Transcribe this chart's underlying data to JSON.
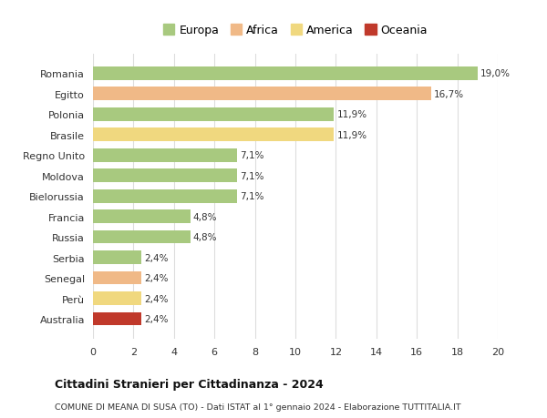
{
  "categories": [
    "Romania",
    "Egitto",
    "Polonia",
    "Brasile",
    "Regno Unito",
    "Moldova",
    "Bielorussia",
    "Francia",
    "Russia",
    "Serbia",
    "Senegal",
    "Perù",
    "Australia"
  ],
  "values": [
    19.0,
    16.7,
    11.9,
    11.9,
    7.1,
    7.1,
    7.1,
    4.8,
    4.8,
    2.4,
    2.4,
    2.4,
    2.4
  ],
  "labels": [
    "19,0%",
    "16,7%",
    "11,9%",
    "11,9%",
    "7,1%",
    "7,1%",
    "7,1%",
    "4,8%",
    "4,8%",
    "2,4%",
    "2,4%",
    "2,4%",
    "2,4%"
  ],
  "colors": [
    "#a8c97f",
    "#f0b987",
    "#a8c97f",
    "#f0d87f",
    "#a8c97f",
    "#a8c97f",
    "#a8c97f",
    "#a8c97f",
    "#a8c97f",
    "#a8c97f",
    "#f0b987",
    "#f0d87f",
    "#c0392b"
  ],
  "legend": [
    {
      "label": "Europa",
      "color": "#a8c97f"
    },
    {
      "label": "Africa",
      "color": "#f0b987"
    },
    {
      "label": "America",
      "color": "#f0d87f"
    },
    {
      "label": "Oceania",
      "color": "#c0392b"
    }
  ],
  "title": "Cittadini Stranieri per Cittadinanza - 2024",
  "subtitle": "COMUNE DI MEANA DI SUSA (TO) - Dati ISTAT al 1° gennaio 2024 - Elaborazione TUTTITALIA.IT",
  "xlim": [
    0,
    20
  ],
  "xticks": [
    0,
    2,
    4,
    6,
    8,
    10,
    12,
    14,
    16,
    18,
    20
  ],
  "background_color": "#ffffff",
  "grid_color": "#dddddd"
}
